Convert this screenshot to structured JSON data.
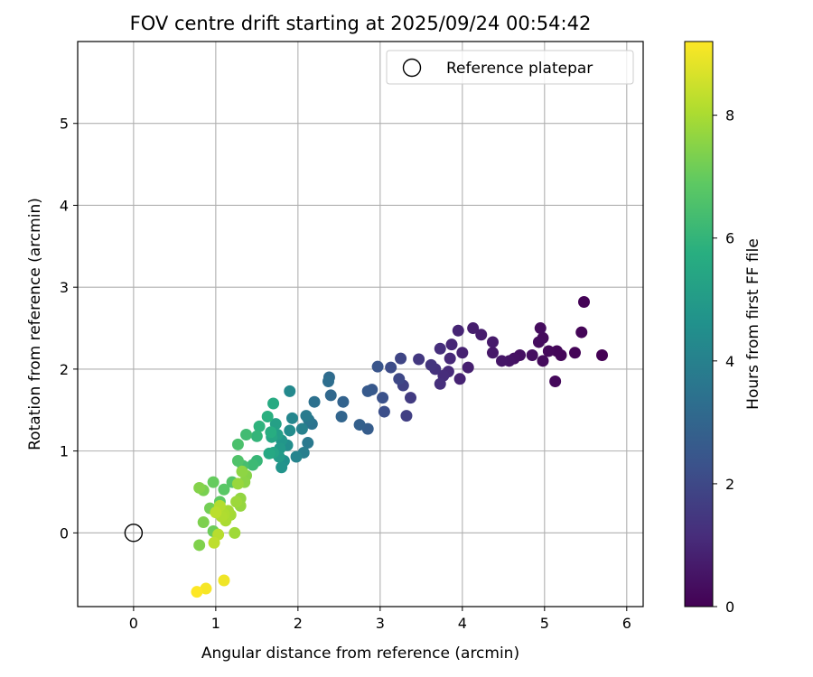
{
  "chart_data": {
    "type": "scatter",
    "title": "FOV centre drift starting at 2025/09/24 00:54:42",
    "xlabel": "Angular distance from reference (arcmin)",
    "ylabel": "Rotation from reference (arcmin)",
    "xlim": [
      -0.68,
      6.2
    ],
    "ylim": [
      -0.9,
      6.0
    ],
    "xticks": [
      "0",
      "1",
      "2",
      "3",
      "4",
      "5",
      "6"
    ],
    "yticks": [
      "0",
      "1",
      "2",
      "3",
      "4",
      "5"
    ],
    "grid": true,
    "legend": {
      "label": "Reference platepar",
      "placement": "top-right"
    },
    "reference_point": {
      "x": 0,
      "y": 0
    },
    "colorbar": {
      "label": "Hours from first FF file",
      "range": [
        0,
        9.2
      ],
      "ticks": [
        "0",
        "2",
        "4",
        "6",
        "8"
      ]
    },
    "points": [
      {
        "x": 5.7,
        "y": 2.17,
        "h": 0.0
      },
      {
        "x": 5.48,
        "y": 2.82,
        "h": 0.05
      },
      {
        "x": 5.45,
        "y": 2.45,
        "h": 0.1
      },
      {
        "x": 5.37,
        "y": 2.2,
        "h": 0.1
      },
      {
        "x": 5.2,
        "y": 2.17,
        "h": 0.15
      },
      {
        "x": 5.15,
        "y": 2.22,
        "h": 0.15
      },
      {
        "x": 5.13,
        "y": 1.85,
        "h": 0.2
      },
      {
        "x": 5.05,
        "y": 2.22,
        "h": 0.2
      },
      {
        "x": 4.98,
        "y": 2.1,
        "h": 0.25
      },
      {
        "x": 4.98,
        "y": 2.38,
        "h": 0.25
      },
      {
        "x": 4.95,
        "y": 2.5,
        "h": 0.3
      },
      {
        "x": 4.93,
        "y": 2.33,
        "h": 0.3
      },
      {
        "x": 4.85,
        "y": 2.17,
        "h": 0.35
      },
      {
        "x": 4.7,
        "y": 2.17,
        "h": 0.4
      },
      {
        "x": 4.63,
        "y": 2.13,
        "h": 0.45
      },
      {
        "x": 4.57,
        "y": 2.1,
        "h": 0.5
      },
      {
        "x": 4.48,
        "y": 2.1,
        "h": 0.55
      },
      {
        "x": 4.37,
        "y": 2.2,
        "h": 0.6
      },
      {
        "x": 4.37,
        "y": 2.33,
        "h": 0.65
      },
      {
        "x": 4.23,
        "y": 2.42,
        "h": 0.7
      },
      {
        "x": 4.13,
        "y": 2.5,
        "h": 0.75
      },
      {
        "x": 4.07,
        "y": 2.02,
        "h": 0.8
      },
      {
        "x": 4.0,
        "y": 2.2,
        "h": 0.85
      },
      {
        "x": 3.97,
        "y": 1.88,
        "h": 0.9
      },
      {
        "x": 3.95,
        "y": 2.47,
        "h": 0.95
      },
      {
        "x": 3.87,
        "y": 2.3,
        "h": 1.0
      },
      {
        "x": 3.85,
        "y": 2.13,
        "h": 1.05
      },
      {
        "x": 3.83,
        "y": 1.97,
        "h": 1.1
      },
      {
        "x": 3.77,
        "y": 1.92,
        "h": 1.15
      },
      {
        "x": 3.73,
        "y": 2.25,
        "h": 1.2
      },
      {
        "x": 3.73,
        "y": 1.82,
        "h": 1.25
      },
      {
        "x": 3.67,
        "y": 2.0,
        "h": 1.3
      },
      {
        "x": 3.62,
        "y": 2.05,
        "h": 1.4
      },
      {
        "x": 3.47,
        "y": 2.12,
        "h": 1.5
      },
      {
        "x": 3.37,
        "y": 1.65,
        "h": 1.6
      },
      {
        "x": 3.32,
        "y": 1.43,
        "h": 1.7
      },
      {
        "x": 3.28,
        "y": 1.8,
        "h": 1.8
      },
      {
        "x": 3.25,
        "y": 2.13,
        "h": 1.9
      },
      {
        "x": 3.23,
        "y": 1.88,
        "h": 2.0
      },
      {
        "x": 3.13,
        "y": 2.02,
        "h": 2.1
      },
      {
        "x": 3.05,
        "y": 1.48,
        "h": 2.2
      },
      {
        "x": 3.03,
        "y": 1.65,
        "h": 2.3
      },
      {
        "x": 2.97,
        "y": 2.03,
        "h": 2.4
      },
      {
        "x": 2.9,
        "y": 1.75,
        "h": 2.5
      },
      {
        "x": 2.85,
        "y": 1.73,
        "h": 2.6
      },
      {
        "x": 2.85,
        "y": 1.27,
        "h": 2.7
      },
      {
        "x": 2.75,
        "y": 1.32,
        "h": 2.8
      },
      {
        "x": 2.55,
        "y": 1.6,
        "h": 2.9
      },
      {
        "x": 2.53,
        "y": 1.42,
        "h": 3.0
      },
      {
        "x": 2.4,
        "y": 1.68,
        "h": 3.1
      },
      {
        "x": 2.38,
        "y": 1.9,
        "h": 3.2
      },
      {
        "x": 2.37,
        "y": 1.85,
        "h": 3.3
      },
      {
        "x": 2.2,
        "y": 1.6,
        "h": 3.4
      },
      {
        "x": 2.17,
        "y": 1.33,
        "h": 3.5
      },
      {
        "x": 2.13,
        "y": 1.38,
        "h": 3.6
      },
      {
        "x": 2.12,
        "y": 1.1,
        "h": 3.7
      },
      {
        "x": 2.1,
        "y": 1.43,
        "h": 3.8
      },
      {
        "x": 2.07,
        "y": 0.98,
        "h": 3.9
      },
      {
        "x": 2.05,
        "y": 1.27,
        "h": 4.0
      },
      {
        "x": 1.98,
        "y": 0.93,
        "h": 4.1
      },
      {
        "x": 1.93,
        "y": 1.4,
        "h": 4.2
      },
      {
        "x": 1.9,
        "y": 1.73,
        "h": 4.3
      },
      {
        "x": 1.9,
        "y": 1.25,
        "h": 4.4
      },
      {
        "x": 1.87,
        "y": 1.07,
        "h": 4.5
      },
      {
        "x": 1.83,
        "y": 0.88,
        "h": 4.6
      },
      {
        "x": 1.8,
        "y": 0.8,
        "h": 4.7
      },
      {
        "x": 1.8,
        "y": 1.13,
        "h": 4.8
      },
      {
        "x": 1.78,
        "y": 1.03,
        "h": 4.9
      },
      {
        "x": 1.77,
        "y": 0.93,
        "h": 5.0
      },
      {
        "x": 1.75,
        "y": 1.2,
        "h": 5.1
      },
      {
        "x": 1.73,
        "y": 1.33,
        "h": 5.2
      },
      {
        "x": 1.7,
        "y": 0.98,
        "h": 5.3
      },
      {
        "x": 1.68,
        "y": 1.17,
        "h": 5.4
      },
      {
        "x": 1.65,
        "y": 0.97,
        "h": 5.5
      },
      {
        "x": 1.7,
        "y": 1.58,
        "h": 5.6
      },
      {
        "x": 1.67,
        "y": 1.23,
        "h": 5.7
      },
      {
        "x": 1.63,
        "y": 1.42,
        "h": 5.8
      },
      {
        "x": 1.53,
        "y": 1.3,
        "h": 5.9
      },
      {
        "x": 1.5,
        "y": 1.18,
        "h": 6.0
      },
      {
        "x": 1.5,
        "y": 0.88,
        "h": 6.1
      },
      {
        "x": 1.45,
        "y": 0.83,
        "h": 6.2
      },
      {
        "x": 1.37,
        "y": 1.2,
        "h": 6.3
      },
      {
        "x": 1.33,
        "y": 0.82,
        "h": 6.4
      },
      {
        "x": 1.27,
        "y": 1.08,
        "h": 6.5
      },
      {
        "x": 1.27,
        "y": 0.88,
        "h": 6.6
      },
      {
        "x": 1.2,
        "y": 0.62,
        "h": 6.7
      },
      {
        "x": 1.1,
        "y": 0.53,
        "h": 6.8
      },
      {
        "x": 1.05,
        "y": 0.38,
        "h": 6.9
      },
      {
        "x": 0.97,
        "y": 0.62,
        "h": 7.0
      },
      {
        "x": 0.97,
        "y": 0.02,
        "h": 7.1
      },
      {
        "x": 0.93,
        "y": 0.3,
        "h": 7.2
      },
      {
        "x": 0.85,
        "y": 0.52,
        "h": 7.3
      },
      {
        "x": 0.85,
        "y": 0.13,
        "h": 7.35
      },
      {
        "x": 0.8,
        "y": -0.15,
        "h": 7.4
      },
      {
        "x": 0.8,
        "y": 0.55,
        "h": 7.45
      },
      {
        "x": 1.37,
        "y": 0.7,
        "h": 7.5
      },
      {
        "x": 1.35,
        "y": 0.62,
        "h": 7.55
      },
      {
        "x": 1.32,
        "y": 0.75,
        "h": 7.6
      },
      {
        "x": 1.3,
        "y": 0.42,
        "h": 7.65
      },
      {
        "x": 1.3,
        "y": 0.33,
        "h": 7.7
      },
      {
        "x": 1.27,
        "y": 0.6,
        "h": 7.75
      },
      {
        "x": 1.25,
        "y": 0.38,
        "h": 7.8
      },
      {
        "x": 1.23,
        "y": 0.0,
        "h": 7.85
      },
      {
        "x": 1.18,
        "y": 0.22,
        "h": 7.9
      },
      {
        "x": 1.15,
        "y": 0.27,
        "h": 7.95
      },
      {
        "x": 1.12,
        "y": 0.15,
        "h": 8.0
      },
      {
        "x": 1.1,
        "y": 0.23,
        "h": 8.05
      },
      {
        "x": 1.07,
        "y": 0.2,
        "h": 8.1
      },
      {
        "x": 1.05,
        "y": 0.33,
        "h": 8.15
      },
      {
        "x": 1.03,
        "y": -0.02,
        "h": 8.2
      },
      {
        "x": 1.0,
        "y": 0.25,
        "h": 8.25
      },
      {
        "x": 0.98,
        "y": -0.12,
        "h": 8.3
      },
      {
        "x": 1.1,
        "y": -0.58,
        "h": 9.0
      },
      {
        "x": 0.88,
        "y": -0.68,
        "h": 9.1
      },
      {
        "x": 0.77,
        "y": -0.72,
        "h": 9.2
      }
    ]
  }
}
